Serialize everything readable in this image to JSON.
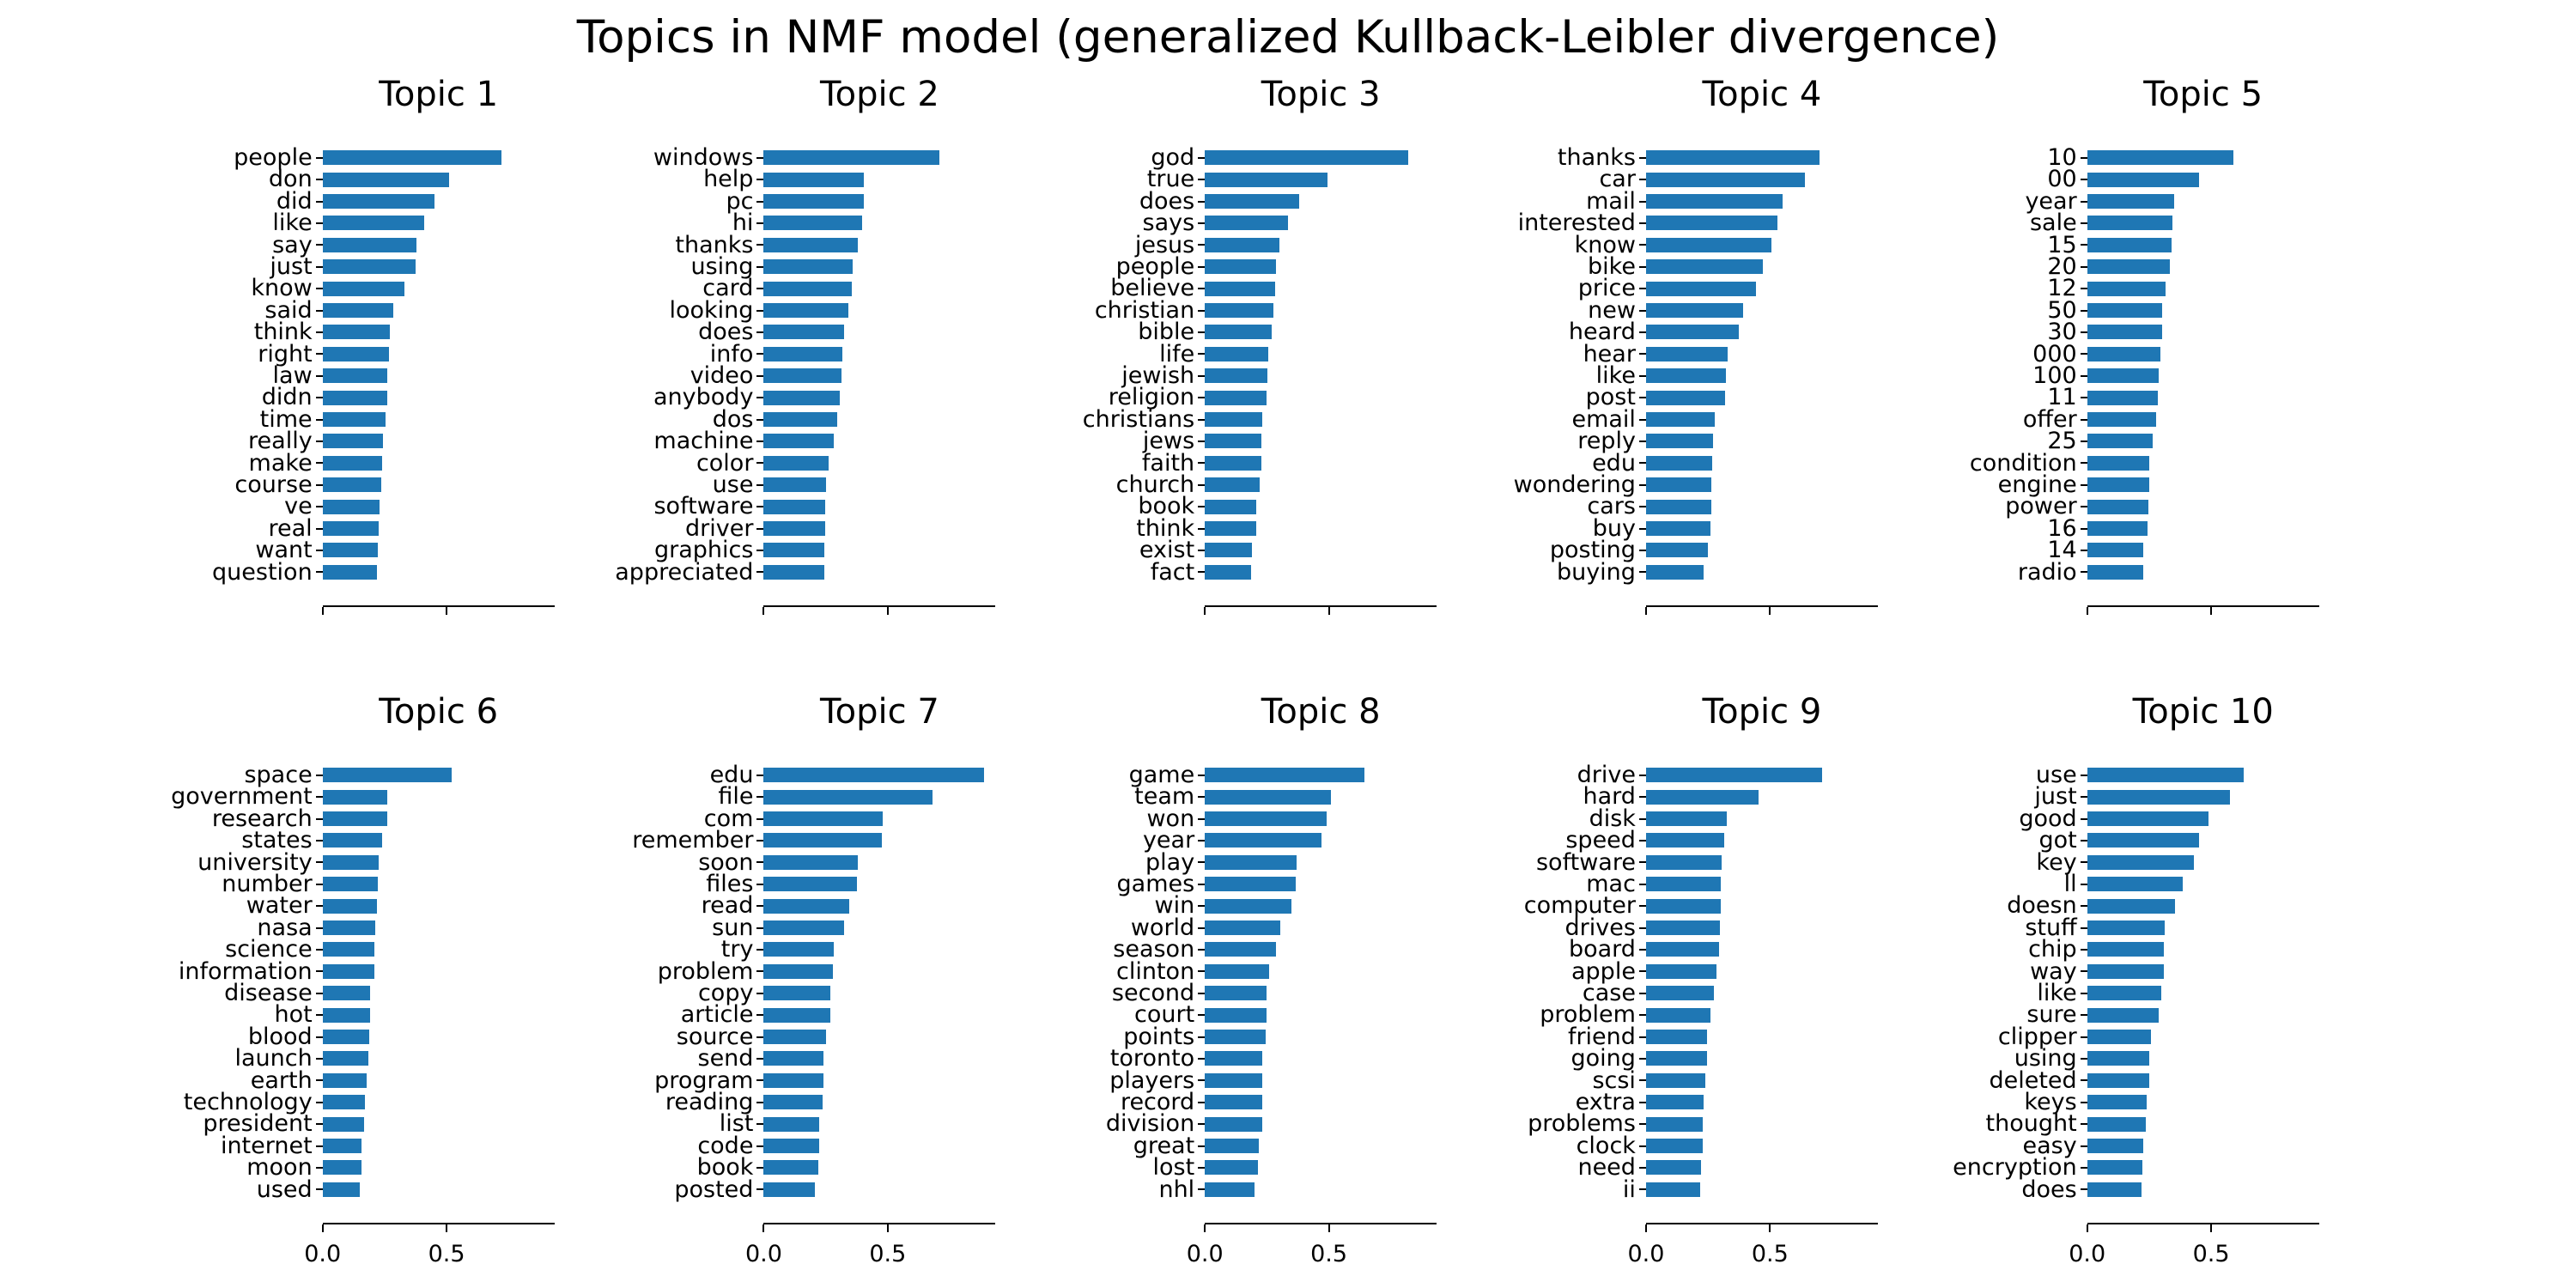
{
  "figure": {
    "suptitle": "Topics in NMF model (generalized Kullback-Leibler divergence)",
    "background_color": "#ffffff",
    "bar_color": "#1f77b4",
    "axis_color": "#000000",
    "text_color": "#000000"
  },
  "axis": {
    "xlim": [
      0,
      0.935
    ],
    "xticks": [
      0.0,
      0.5
    ],
    "xtick_labels": [
      "0.0",
      "0.5"
    ],
    "xtick_labels_visible": "bottom-row-only",
    "grid": "off",
    "shared_x": true
  },
  "chart_data": [
    {
      "type": "bar",
      "orientation": "horizontal",
      "title": "Topic 1",
      "categories": [
        "people",
        "don",
        "did",
        "like",
        "say",
        "just",
        "know",
        "said",
        "think",
        "right",
        "law",
        "didn",
        "time",
        "really",
        "make",
        "course",
        "ve",
        "real",
        "want",
        "question"
      ],
      "values": [
        0.72,
        0.51,
        0.45,
        0.41,
        0.38,
        0.375,
        0.33,
        0.285,
        0.27,
        0.268,
        0.262,
        0.26,
        0.255,
        0.242,
        0.24,
        0.235,
        0.23,
        0.225,
        0.222,
        0.22
      ]
    },
    {
      "type": "bar",
      "orientation": "horizontal",
      "title": "Topic 2",
      "categories": [
        "windows",
        "help",
        "pc",
        "hi",
        "thanks",
        "using",
        "card",
        "looking",
        "does",
        "info",
        "video",
        "anybody",
        "dos",
        "machine",
        "color",
        "use",
        "software",
        "driver",
        "graphics",
        "appreciated"
      ],
      "values": [
        0.71,
        0.405,
        0.405,
        0.398,
        0.38,
        0.357,
        0.355,
        0.34,
        0.325,
        0.318,
        0.313,
        0.305,
        0.295,
        0.283,
        0.26,
        0.252,
        0.249,
        0.248,
        0.243,
        0.243
      ]
    },
    {
      "type": "bar",
      "orientation": "horizontal",
      "title": "Topic 3",
      "categories": [
        "god",
        "true",
        "does",
        "says",
        "jesus",
        "people",
        "believe",
        "christian",
        "bible",
        "life",
        "jewish",
        "religion",
        "christians",
        "jews",
        "faith",
        "church",
        "book",
        "think",
        "exist",
        "fact"
      ],
      "values": [
        0.82,
        0.495,
        0.38,
        0.335,
        0.3,
        0.286,
        0.285,
        0.275,
        0.27,
        0.257,
        0.253,
        0.247,
        0.232,
        0.228,
        0.227,
        0.22,
        0.207,
        0.206,
        0.19,
        0.186
      ]
    },
    {
      "type": "bar",
      "orientation": "horizontal",
      "title": "Topic 4",
      "categories": [
        "thanks",
        "car",
        "mail",
        "interested",
        "know",
        "bike",
        "price",
        "new",
        "heard",
        "hear",
        "like",
        "post",
        "email",
        "reply",
        "edu",
        "wondering",
        "cars",
        "buy",
        "posting",
        "buying"
      ],
      "values": [
        0.7,
        0.64,
        0.55,
        0.53,
        0.505,
        0.47,
        0.445,
        0.39,
        0.375,
        0.33,
        0.322,
        0.32,
        0.277,
        0.272,
        0.268,
        0.265,
        0.264,
        0.26,
        0.25,
        0.233
      ]
    },
    {
      "type": "bar",
      "orientation": "horizontal",
      "title": "Topic 5",
      "categories": [
        "10",
        "00",
        "year",
        "sale",
        "15",
        "20",
        "12",
        "50",
        "30",
        "000",
        "100",
        "11",
        "offer",
        "25",
        "condition",
        "engine",
        "power",
        "16",
        "14",
        "radio"
      ],
      "values": [
        0.59,
        0.45,
        0.35,
        0.345,
        0.34,
        0.333,
        0.317,
        0.303,
        0.302,
        0.295,
        0.287,
        0.285,
        0.277,
        0.263,
        0.252,
        0.25,
        0.246,
        0.245,
        0.226,
        0.225
      ]
    },
    {
      "type": "bar",
      "orientation": "horizontal",
      "title": "Topic 6",
      "categories": [
        "space",
        "government",
        "research",
        "states",
        "university",
        "number",
        "water",
        "nasa",
        "science",
        "information",
        "disease",
        "hot",
        "blood",
        "launch",
        "earth",
        "technology",
        "president",
        "internet",
        "moon",
        "used"
      ],
      "values": [
        0.52,
        0.262,
        0.26,
        0.24,
        0.227,
        0.223,
        0.22,
        0.211,
        0.21,
        0.208,
        0.192,
        0.191,
        0.188,
        0.183,
        0.178,
        0.17,
        0.167,
        0.157,
        0.156,
        0.151
      ]
    },
    {
      "type": "bar",
      "orientation": "horizontal",
      "title": "Topic 7",
      "categories": [
        "edu",
        "file",
        "com",
        "remember",
        "soon",
        "files",
        "read",
        "sun",
        "try",
        "problem",
        "copy",
        "article",
        "source",
        "send",
        "program",
        "reading",
        "list",
        "code",
        "book",
        "posted"
      ],
      "values": [
        0.89,
        0.68,
        0.48,
        0.475,
        0.38,
        0.375,
        0.344,
        0.324,
        0.282,
        0.278,
        0.27,
        0.267,
        0.252,
        0.241,
        0.24,
        0.238,
        0.225,
        0.222,
        0.221,
        0.205
      ]
    },
    {
      "type": "bar",
      "orientation": "horizontal",
      "title": "Topic 8",
      "categories": [
        "game",
        "team",
        "won",
        "year",
        "play",
        "games",
        "win",
        "world",
        "season",
        "clinton",
        "second",
        "court",
        "points",
        "toronto",
        "players",
        "record",
        "division",
        "great",
        "lost",
        "nhl"
      ],
      "values": [
        0.645,
        0.51,
        0.49,
        0.47,
        0.37,
        0.365,
        0.35,
        0.305,
        0.286,
        0.26,
        0.248,
        0.247,
        0.245,
        0.233,
        0.232,
        0.231,
        0.23,
        0.216,
        0.214,
        0.199
      ]
    },
    {
      "type": "bar",
      "orientation": "horizontal",
      "title": "Topic 9",
      "categories": [
        "drive",
        "hard",
        "disk",
        "speed",
        "software",
        "mac",
        "computer",
        "drives",
        "board",
        "apple",
        "case",
        "problem",
        "friend",
        "going",
        "scsi",
        "extra",
        "problems",
        "clock",
        "need",
        "ii"
      ],
      "values": [
        0.71,
        0.455,
        0.325,
        0.315,
        0.305,
        0.302,
        0.3,
        0.297,
        0.293,
        0.285,
        0.274,
        0.26,
        0.247,
        0.246,
        0.24,
        0.231,
        0.23,
        0.229,
        0.221,
        0.22
      ]
    },
    {
      "type": "bar",
      "orientation": "horizontal",
      "title": "Topic 10",
      "categories": [
        "use",
        "just",
        "good",
        "got",
        "key",
        "ll",
        "doesn",
        "stuff",
        "chip",
        "way",
        "like",
        "sure",
        "clipper",
        "using",
        "deleted",
        "keys",
        "thought",
        "easy",
        "encryption",
        "does"
      ],
      "values": [
        0.63,
        0.575,
        0.49,
        0.45,
        0.43,
        0.387,
        0.356,
        0.312,
        0.31,
        0.309,
        0.3,
        0.29,
        0.257,
        0.251,
        0.25,
        0.24,
        0.235,
        0.226,
        0.222,
        0.22
      ]
    }
  ]
}
